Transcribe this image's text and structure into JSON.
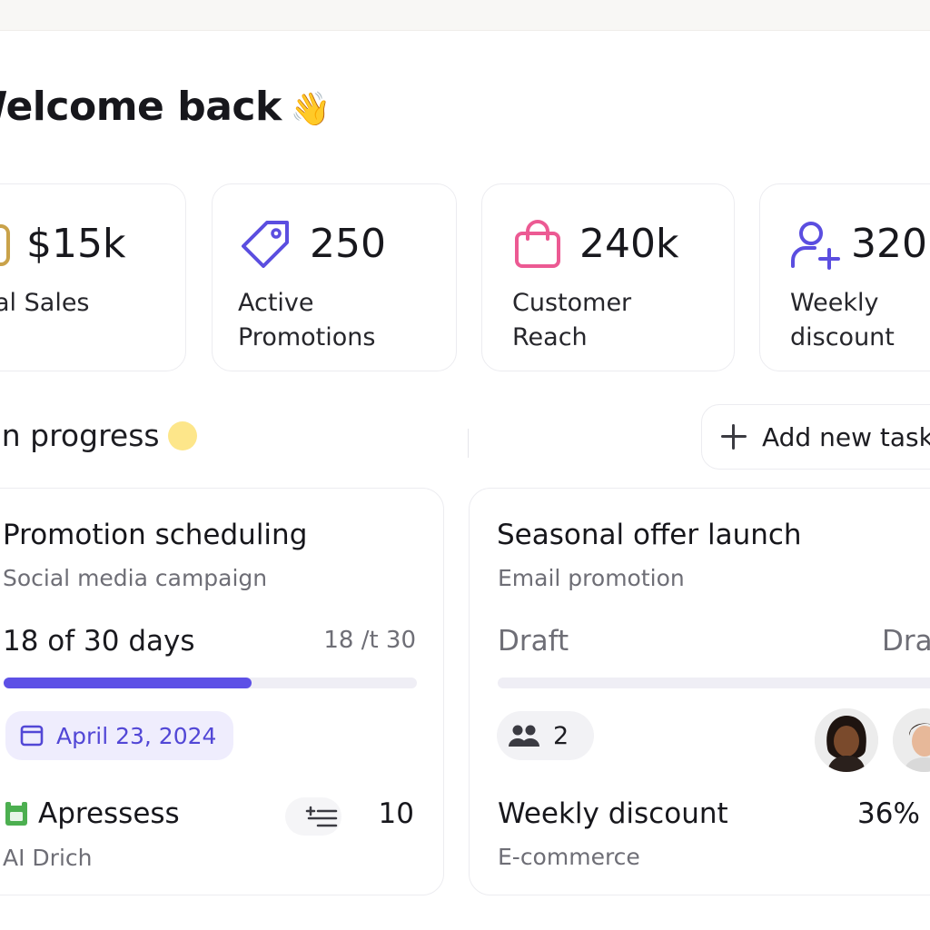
{
  "welcome": {
    "title": "Welcome back",
    "emoji": "👋"
  },
  "stats": [
    {
      "value": "$15k",
      "label": "Total Sales",
      "icon": "dollar-icon",
      "color": "#c9a24a"
    },
    {
      "value": "250",
      "label": "Active\nPromotions",
      "icon": "tag-icon",
      "color": "#5b4ee0"
    },
    {
      "value": "240k",
      "label": "Customer\nReach",
      "icon": "shopping-bag-icon",
      "color": "#ec5a93"
    },
    {
      "value": "320",
      "label": "Weekly\ndiscount",
      "icon": "user-plus-icon",
      "color": "#5b4ee0"
    }
  ],
  "section": {
    "title": "In progress",
    "add_button": "Add new task"
  },
  "tasks": [
    {
      "title": "Promotion scheduling",
      "subtitle": "Social media campaign",
      "progress_text": "18 of 30 days",
      "progress_ratio": "18 /t 30",
      "progress": 0.6,
      "date": "April 23, 2024",
      "footer_name": "Apressess",
      "footer_sub": "AI Drich",
      "count": "10"
    },
    {
      "title": "Seasonal offer launch",
      "subtitle": "Email promotion",
      "status_left": "Draft",
      "status_right": "Draft",
      "progress": 0,
      "people_count": "2",
      "footer_name": "Weekly discount",
      "footer_sub": "E-commerce",
      "percent": "36%"
    }
  ],
  "colors": {
    "accent": "#5d50e6",
    "date_pill_bg": "#efedfd",
    "in_progress_dot": "#fde68a"
  }
}
